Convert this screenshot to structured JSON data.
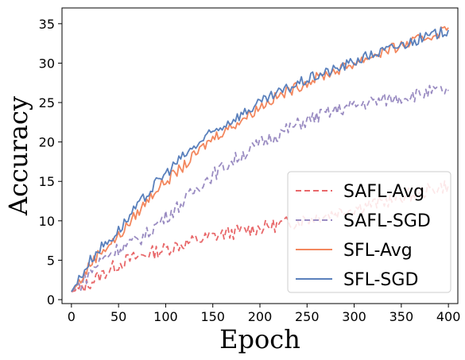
{
  "chart_data": {
    "type": "line",
    "xlabel": "Epoch",
    "ylabel": "Accuracy",
    "xlim": [
      -10,
      410
    ],
    "ylim": [
      -0.5,
      37
    ],
    "xticks": [
      0,
      50,
      100,
      150,
      200,
      250,
      300,
      350,
      400
    ],
    "yticks": [
      0,
      5,
      10,
      15,
      20,
      25,
      30,
      35
    ],
    "grid": false,
    "legend_position": "bottom-right",
    "series": [
      {
        "name": "SAFL-Avg",
        "color": "#e8686a",
        "dash": "dashed",
        "x": [
          0,
          10,
          20,
          30,
          40,
          50,
          60,
          70,
          80,
          90,
          100,
          110,
          120,
          130,
          140,
          150,
          160,
          170,
          180,
          190,
          200,
          210,
          220,
          230,
          240,
          250,
          260,
          270,
          280,
          290,
          300,
          310,
          320,
          330,
          340,
          350,
          360,
          370,
          380,
          390,
          400
        ],
        "values": [
          1,
          1.3,
          2.2,
          3.0,
          3.8,
          4.5,
          5.0,
          5.4,
          5.8,
          6.1,
          6.4,
          6.8,
          7.1,
          7.4,
          7.7,
          8.0,
          8.3,
          8.5,
          8.7,
          8.9,
          9.1,
          9.3,
          9.5,
          9.7,
          9.9,
          10.2,
          10.5,
          10.8,
          11.0,
          11.3,
          11.6,
          11.9,
          12.1,
          12.4,
          12.7,
          13.0,
          13.3,
          13.6,
          13.9,
          14.2,
          14.5
        ]
      },
      {
        "name": "SAFL-SGD",
        "color": "#9a8cc2",
        "dash": "dashed",
        "x": [
          0,
          10,
          20,
          30,
          40,
          50,
          60,
          70,
          80,
          90,
          100,
          110,
          120,
          130,
          140,
          150,
          160,
          170,
          180,
          190,
          200,
          210,
          220,
          230,
          240,
          250,
          260,
          270,
          280,
          290,
          300,
          310,
          320,
          330,
          340,
          350,
          360,
          370,
          380,
          390,
          400
        ],
        "values": [
          1,
          2.0,
          3.5,
          4.8,
          5.8,
          6.5,
          7.0,
          7.5,
          8.3,
          9.5,
          10.5,
          11.5,
          12.5,
          13.8,
          15.0,
          15.8,
          16.7,
          17.5,
          18.3,
          19.0,
          19.8,
          20.5,
          21.0,
          21.6,
          22.2,
          22.7,
          23.2,
          23.6,
          24.0,
          24.3,
          24.6,
          24.9,
          25.1,
          25.3,
          25.5,
          25.7,
          25.9,
          26.1,
          26.3,
          26.4,
          26.5
        ]
      },
      {
        "name": "SFL-Avg",
        "color": "#f3875e",
        "dash": "solid",
        "x": [
          0,
          10,
          20,
          30,
          40,
          50,
          60,
          70,
          80,
          90,
          100,
          110,
          120,
          130,
          140,
          150,
          160,
          170,
          180,
          190,
          200,
          210,
          220,
          230,
          240,
          250,
          260,
          270,
          280,
          290,
          300,
          310,
          320,
          330,
          340,
          350,
          360,
          370,
          380,
          390,
          400
        ],
        "values": [
          1,
          2.5,
          4.5,
          6.0,
          7.0,
          8.0,
          9.5,
          11.0,
          12.5,
          14.0,
          15.0,
          16.0,
          17.0,
          18.2,
          19.4,
          20.5,
          21.3,
          22.0,
          22.8,
          23.6,
          24.5,
          25.2,
          25.8,
          26.4,
          27.0,
          27.6,
          28.1,
          28.6,
          29.0,
          29.5,
          30.0,
          30.5,
          31.0,
          31.4,
          31.8,
          32.2,
          32.6,
          33.0,
          33.4,
          33.9,
          34.5
        ]
      },
      {
        "name": "SFL-SGD",
        "color": "#5a80bc",
        "dash": "solid",
        "x": [
          0,
          10,
          20,
          30,
          40,
          50,
          60,
          70,
          80,
          90,
          100,
          110,
          120,
          130,
          140,
          150,
          160,
          170,
          180,
          190,
          200,
          210,
          220,
          230,
          240,
          250,
          260,
          270,
          280,
          290,
          300,
          310,
          320,
          330,
          340,
          350,
          360,
          370,
          380,
          390,
          400
        ],
        "values": [
          1,
          3.0,
          5.0,
          6.5,
          7.5,
          8.8,
          10.3,
          11.8,
          13.3,
          14.8,
          16.0,
          17.2,
          18.3,
          19.3,
          20.3,
          21.2,
          22.0,
          22.8,
          23.5,
          24.2,
          24.9,
          25.6,
          26.2,
          26.8,
          27.4,
          27.9,
          28.4,
          28.8,
          29.2,
          29.7,
          30.2,
          30.7,
          31.1,
          31.5,
          31.9,
          32.3,
          32.7,
          33.1,
          33.4,
          33.8,
          34.2
        ]
      }
    ]
  }
}
